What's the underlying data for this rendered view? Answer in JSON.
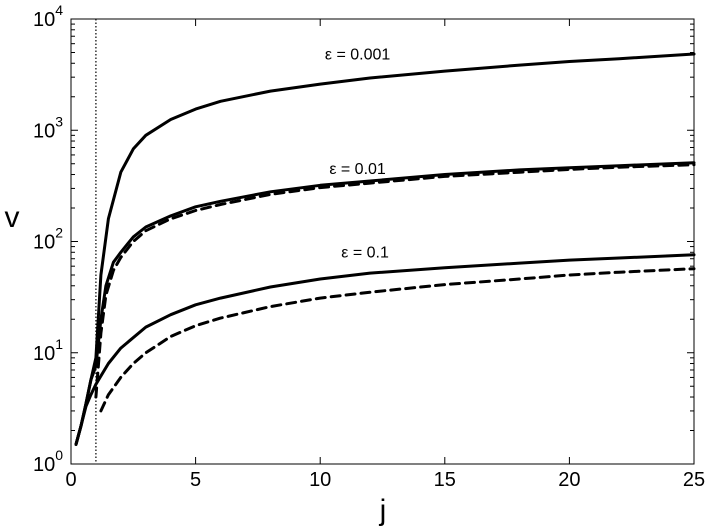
{
  "chart_data": {
    "type": "line",
    "xlabel": "j",
    "ylabel": "v",
    "xlim": [
      0,
      25
    ],
    "ylim": [
      1,
      10000
    ],
    "yscale": "log",
    "grid": false,
    "legend": "none",
    "x_ticks": [
      {
        "value": 0,
        "label": "0"
      },
      {
        "value": 5,
        "label": "5"
      },
      {
        "value": 10,
        "label": "10"
      },
      {
        "value": 15,
        "label": "15"
      },
      {
        "value": 20,
        "label": "20"
      },
      {
        "value": 25,
        "label": "25"
      }
    ],
    "y_ticks": [
      {
        "value": 1,
        "base": "10",
        "exp": "0"
      },
      {
        "value": 10,
        "base": "10",
        "exp": "1"
      },
      {
        "value": 100,
        "base": "10",
        "exp": "2"
      },
      {
        "value": 1000,
        "base": "10",
        "exp": "3"
      },
      {
        "value": 10000,
        "base": "10",
        "exp": "4"
      }
    ],
    "vline": {
      "x": 1,
      "style": "dotted"
    },
    "annotations": [
      {
        "text": "ε = 0.001",
        "x": 11.5,
        "y": 4800
      },
      {
        "text": "ε = 0.01",
        "x": 11.5,
        "y": 450
      },
      {
        "text": "ε = 0.1",
        "x": 11.8,
        "y": 80
      }
    ],
    "series": [
      {
        "style": "solid",
        "x": [
          0.2,
          0.4,
          0.6,
          0.8,
          1.0,
          1.2,
          1.5,
          2,
          2.5,
          3,
          4,
          5,
          6,
          8,
          10,
          12,
          15,
          18,
          20,
          22,
          25
        ],
        "y": [
          1.5,
          2.2,
          3.5,
          5.7,
          9,
          50,
          160,
          420,
          680,
          900,
          1250,
          1550,
          1820,
          2250,
          2600,
          2950,
          3400,
          3850,
          4150,
          4400,
          4850
        ]
      },
      {
        "style": "solid",
        "x": [
          0.2,
          0.4,
          0.6,
          0.8,
          1.0,
          1.2,
          1.4,
          1.7,
          2,
          2.5,
          3,
          4,
          5,
          6,
          8,
          10,
          12,
          15,
          18,
          20,
          22,
          25
        ],
        "y": [
          1.5,
          2.2,
          3.5,
          5.7,
          7.6,
          20,
          40,
          65,
          80,
          110,
          135,
          170,
          205,
          230,
          280,
          320,
          350,
          400,
          440,
          460,
          480,
          510
        ]
      },
      {
        "style": "dashed",
        "x": [
          1.0,
          1.2,
          1.4,
          1.7,
          2,
          2.5,
          3,
          4,
          5,
          6,
          8,
          10,
          12,
          15,
          18,
          20,
          22,
          25
        ],
        "y": [
          4,
          15,
          33,
          55,
          72,
          100,
          125,
          160,
          190,
          215,
          265,
          305,
          335,
          385,
          420,
          445,
          465,
          490
        ]
      },
      {
        "style": "solid",
        "x": [
          0.2,
          0.4,
          0.6,
          0.8,
          1.0,
          1.5,
          2,
          3,
          4,
          5,
          6,
          8,
          10,
          12,
          15,
          18,
          20,
          22,
          25
        ],
        "y": [
          1.5,
          2.2,
          3.3,
          4.2,
          5.2,
          8,
          11,
          17,
          22,
          27,
          31,
          39,
          46,
          52,
          58,
          64,
          68,
          71,
          76
        ]
      },
      {
        "style": "dashed",
        "x": [
          1.2,
          1.5,
          2,
          2.5,
          3,
          4,
          5,
          6,
          8,
          10,
          12,
          15,
          18,
          20,
          22,
          25
        ],
        "y": [
          3,
          4.2,
          6,
          8,
          10,
          14,
          17.5,
          20.5,
          26,
          31,
          35,
          41,
          46,
          50,
          53,
          57
        ]
      }
    ]
  }
}
